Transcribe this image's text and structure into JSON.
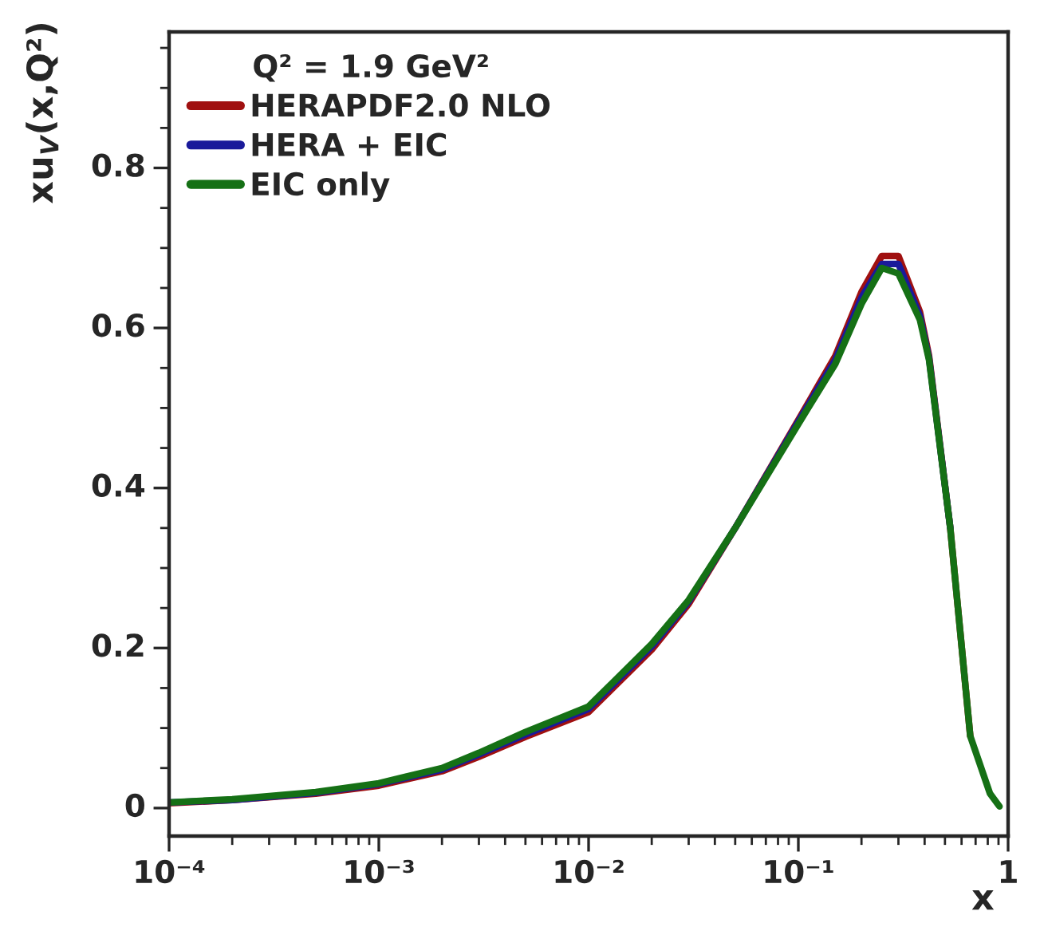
{
  "chart_data": {
    "type": "line",
    "xlabel": "x",
    "ylabel": "xu$_{V}$(x,Q²)",
    "legend_title": "Q² = 1.9 GeV²",
    "x": [
      0.0001,
      0.0002,
      0.0005,
      0.001,
      0.002,
      0.003,
      0.005,
      0.01,
      0.02,
      0.03,
      0.05,
      0.1,
      0.15,
      0.2,
      0.25,
      0.3,
      0.38,
      0.42,
      0.53,
      0.66,
      0.82,
      0.91
    ],
    "series": [
      {
        "name": "HERAPDF2.0 NLO",
        "color": "#a01010",
        "values": [
          0.006,
          0.01,
          0.018,
          0.028,
          0.046,
          0.064,
          0.089,
          0.12,
          0.198,
          0.255,
          0.35,
          0.485,
          0.565,
          0.645,
          0.69,
          0.69,
          0.62,
          0.565,
          0.35,
          0.09,
          null,
          null
        ]
      },
      {
        "name": "HERA + EIC",
        "color": "#1a1a9a",
        "values": [
          0.007,
          0.01,
          0.019,
          0.03,
          0.048,
          0.067,
          0.092,
          0.124,
          0.202,
          0.258,
          0.35,
          0.483,
          0.56,
          0.638,
          0.68,
          0.68,
          0.615,
          0.562,
          0.35,
          null,
          null,
          null
        ]
      },
      {
        "name": "EIC only",
        "color": "#157015",
        "values": [
          0.007,
          0.011,
          0.02,
          0.031,
          0.05,
          0.069,
          0.095,
          0.127,
          0.205,
          0.26,
          0.35,
          0.48,
          0.555,
          0.63,
          0.675,
          0.668,
          0.61,
          0.56,
          0.35,
          0.09,
          0.018,
          0.002
        ]
      }
    ],
    "log": "x",
    "xlim": [
      0.0001,
      1
    ],
    "ylim": [
      -0.035,
      0.97
    ],
    "xticks": [
      {
        "value": 0.0001,
        "label": "10⁻⁴"
      },
      {
        "value": 0.001,
        "label": "10⁻³"
      },
      {
        "value": 0.01,
        "label": "10⁻²"
      },
      {
        "value": 0.1,
        "label": "10⁻¹"
      },
      1
    ],
    "yticks": [
      0,
      0.2,
      0.4,
      0.6,
      0.8
    ],
    "grid": false,
    "legend": "top left",
    "marker": "none",
    "line_style": "solid"
  }
}
